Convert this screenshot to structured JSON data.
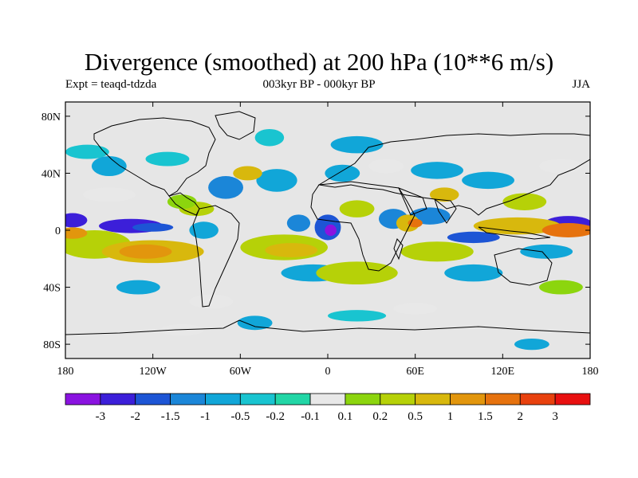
{
  "title": "Divergence (smoothed) at 200 hPa (10**6 m/s)",
  "experiment": "Expt = teaqd-tdzda",
  "period": "003kyr BP - 000kyr BP",
  "season": "JJA",
  "map": {
    "projection": "cylindrical equidistant",
    "lon_range": [
      -180,
      180
    ],
    "lat_range": [
      -90,
      90
    ],
    "lat_ticks": [
      {
        "value": 80,
        "label": "80N"
      },
      {
        "value": 40,
        "label": "40N"
      },
      {
        "value": 0,
        "label": "0"
      },
      {
        "value": -40,
        "label": "40S"
      },
      {
        "value": -80,
        "label": "80S"
      }
    ],
    "lon_ticks": [
      {
        "value": -180,
        "label": "180"
      },
      {
        "value": -120,
        "label": "120W"
      },
      {
        "value": -60,
        "label": "60W"
      },
      {
        "value": 0,
        "label": "0"
      },
      {
        "value": 60,
        "label": "60E"
      },
      {
        "value": 120,
        "label": "120E"
      },
      {
        "value": 180,
        "label": "180"
      }
    ],
    "background_color": "#e6e6e6",
    "contour_blobs": [
      {
        "lon": -175,
        "lat": 7,
        "rx": 10,
        "ry": 5,
        "level": 1
      },
      {
        "lon": -135,
        "lat": 3,
        "rx": 22,
        "ry": 5,
        "level": 1
      },
      {
        "lon": -120,
        "lat": 2,
        "rx": 14,
        "ry": 3,
        "level": 2
      },
      {
        "lon": -150,
        "lat": 45,
        "rx": 12,
        "ry": 7,
        "level": 4
      },
      {
        "lon": -70,
        "lat": 30,
        "rx": 12,
        "ry": 8,
        "level": 3
      },
      {
        "lon": -85,
        "lat": 0,
        "rx": 10,
        "ry": 6,
        "level": 4
      },
      {
        "lon": -35,
        "lat": 35,
        "rx": 14,
        "ry": 8,
        "level": 4
      },
      {
        "lon": -20,
        "lat": 5,
        "rx": 8,
        "ry": 6,
        "level": 3
      },
      {
        "lon": 0,
        "lat": 2,
        "rx": 9,
        "ry": 9,
        "level": 2
      },
      {
        "lon": 2,
        "lat": 0,
        "rx": 4,
        "ry": 4,
        "level": 0
      },
      {
        "lon": 20,
        "lat": 60,
        "rx": 18,
        "ry": 6,
        "level": 4
      },
      {
        "lon": 10,
        "lat": 40,
        "rx": 12,
        "ry": 6,
        "level": 4
      },
      {
        "lon": 45,
        "lat": 8,
        "rx": 10,
        "ry": 7,
        "level": 3
      },
      {
        "lon": 70,
        "lat": 10,
        "rx": 14,
        "ry": 6,
        "level": 3
      },
      {
        "lon": 75,
        "lat": 42,
        "rx": 18,
        "ry": 6,
        "level": 4
      },
      {
        "lon": 110,
        "lat": 35,
        "rx": 18,
        "ry": 6,
        "level": 4
      },
      {
        "lon": 100,
        "lat": -5,
        "rx": 18,
        "ry": 4,
        "level": 2
      },
      {
        "lon": 165,
        "lat": 5,
        "rx": 16,
        "ry": 5,
        "level": 1
      },
      {
        "lon": 150,
        "lat": -15,
        "rx": 18,
        "ry": 5,
        "level": 4
      },
      {
        "lon": -10,
        "lat": -30,
        "rx": 22,
        "ry": 6,
        "level": 4
      },
      {
        "lon": 100,
        "lat": -30,
        "rx": 20,
        "ry": 6,
        "level": 4
      },
      {
        "lon": -130,
        "lat": -40,
        "rx": 15,
        "ry": 5,
        "level": 4
      },
      {
        "lon": -165,
        "lat": 55,
        "rx": 15,
        "ry": 5,
        "level": 5
      },
      {
        "lon": -110,
        "lat": 50,
        "rx": 15,
        "ry": 5,
        "level": 5
      },
      {
        "lon": -40,
        "lat": 65,
        "rx": 10,
        "ry": 6,
        "level": 5
      },
      {
        "lon": 20,
        "lat": -60,
        "rx": 20,
        "ry": 4,
        "level": 5
      },
      {
        "lon": -50,
        "lat": -65,
        "rx": 12,
        "ry": 5,
        "level": 4
      },
      {
        "lon": 140,
        "lat": -80,
        "rx": 12,
        "ry": 4,
        "level": 4
      },
      {
        "lon": -160,
        "lat": -10,
        "rx": 25,
        "ry": 10,
        "level": 9
      },
      {
        "lon": -120,
        "lat": -15,
        "rx": 35,
        "ry": 8,
        "level": 10
      },
      {
        "lon": -125,
        "lat": -15,
        "rx": 18,
        "ry": 5,
        "level": 11
      },
      {
        "lon": -175,
        "lat": -2,
        "rx": 10,
        "ry": 4,
        "level": 11
      },
      {
        "lon": -90,
        "lat": 15,
        "rx": 12,
        "ry": 5,
        "level": 9
      },
      {
        "lon": -30,
        "lat": -12,
        "rx": 30,
        "ry": 9,
        "level": 9
      },
      {
        "lon": -25,
        "lat": -14,
        "rx": 18,
        "ry": 5,
        "level": 10
      },
      {
        "lon": 20,
        "lat": -30,
        "rx": 28,
        "ry": 8,
        "level": 9
      },
      {
        "lon": 20,
        "lat": 15,
        "rx": 12,
        "ry": 6,
        "level": 9
      },
      {
        "lon": 55,
        "lat": 5,
        "rx": 8,
        "ry": 6,
        "level": 10
      },
      {
        "lon": 60,
        "lat": 5,
        "rx": 5,
        "ry": 3,
        "level": 12
      },
      {
        "lon": 75,
        "lat": -15,
        "rx": 25,
        "ry": 7,
        "level": 9
      },
      {
        "lon": 130,
        "lat": 3,
        "rx": 30,
        "ry": 6,
        "level": 10
      },
      {
        "lon": 165,
        "lat": 0,
        "rx": 18,
        "ry": 5,
        "level": 12
      },
      {
        "lon": 135,
        "lat": 20,
        "rx": 15,
        "ry": 6,
        "level": 9
      },
      {
        "lon": -55,
        "lat": 40,
        "rx": 10,
        "ry": 5,
        "level": 10
      },
      {
        "lon": 80,
        "lat": 25,
        "rx": 10,
        "ry": 5,
        "level": 10
      },
      {
        "lon": -150,
        "lat": 25,
        "rx": 18,
        "ry": 5,
        "level": 7
      },
      {
        "lon": 160,
        "lat": 45,
        "rx": 15,
        "ry": 5,
        "level": 7
      },
      {
        "lon": 40,
        "lat": 45,
        "rx": 12,
        "ry": 5,
        "level": 7
      },
      {
        "lon": -100,
        "lat": 20,
        "rx": 10,
        "ry": 5,
        "level": 8
      },
      {
        "lon": 160,
        "lat": -40,
        "rx": 15,
        "ry": 5,
        "level": 8
      },
      {
        "lon": -80,
        "lat": -50,
        "rx": 15,
        "ry": 5,
        "level": 7
      },
      {
        "lon": 60,
        "lat": -55,
        "rx": 15,
        "ry": 4,
        "level": 7
      },
      {
        "lon": -100,
        "lat": -70,
        "rx": 15,
        "ry": 4,
        "level": 7
      }
    ]
  },
  "colorbar": {
    "colors": [
      "#8a13e0",
      "#3c1fd9",
      "#1d55d5",
      "#1b86d8",
      "#11a6d8",
      "#19c4d0",
      "#22d6a6",
      "#e8e8e8",
      "#8cd50e",
      "#b6d108",
      "#d8b80d",
      "#e2960d",
      "#e6720e",
      "#e8410e",
      "#e81010"
    ],
    "labels": [
      "-3",
      "-2",
      "-1.5",
      "-1",
      "-0.5",
      "-0.2",
      "-0.1",
      "0.1",
      "0.2",
      "0.5",
      "1",
      "1.5",
      "2",
      "3"
    ]
  }
}
